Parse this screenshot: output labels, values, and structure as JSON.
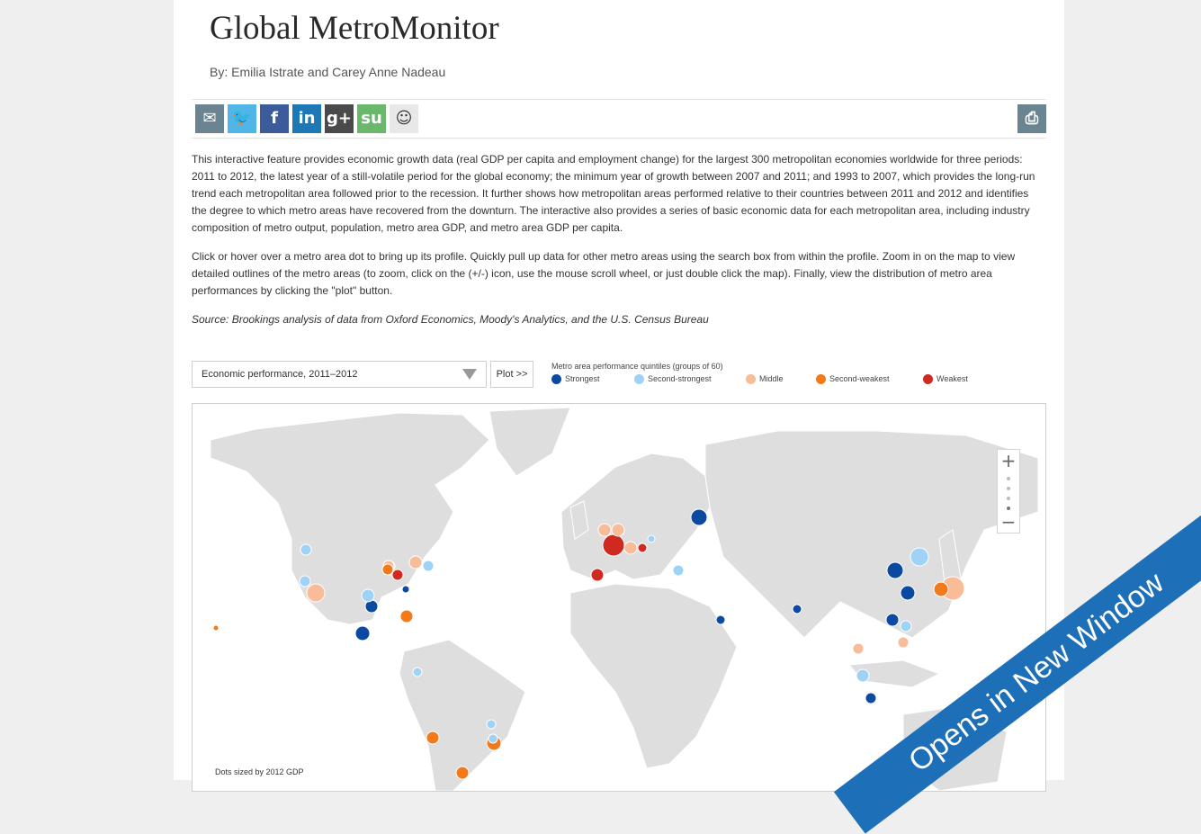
{
  "header": {
    "title": "Global MetroMonitor",
    "byline": "By: Emilia Istrate and Carey Anne Nadeau"
  },
  "share": {
    "items": [
      {
        "name": "email-share-button",
        "icon": "envelope-icon",
        "glyph": "✉",
        "color": "#6a8591"
      },
      {
        "name": "twitter-share-button",
        "icon": "twitter-bird-icon",
        "glyph": "🐦",
        "color": "#50b6e8"
      },
      {
        "name": "facebook-share-button",
        "icon": "facebook-f-icon",
        "glyph": "f",
        "color": "#3b5b9a"
      },
      {
        "name": "linkedin-share-button",
        "icon": "linkedin-in-icon",
        "glyph": "in",
        "color": "#1e78b6"
      },
      {
        "name": "googleplus-share-button",
        "icon": "google-plus-icon",
        "glyph": "g+",
        "color": "#4a4a4a"
      },
      {
        "name": "stumbleupon-share-button",
        "icon": "stumbleupon-icon",
        "glyph": "su",
        "color": "#69b86b"
      },
      {
        "name": "reddit-share-button",
        "icon": "reddit-alien-icon",
        "glyph": "☺",
        "color": "#e8e8e8"
      }
    ],
    "print": {
      "name": "print-button",
      "icon": "printer-icon",
      "glyph": "⎙",
      "color": "#6a8591"
    }
  },
  "intro": {
    "p1": "This interactive feature provides economic growth data (real GDP per capita and employment change) for the largest 300 metropolitan economies worldwide for three periods: 2011 to 2012, the latest year of a still-volatile period for the global economy; the minimum year of growth between 2007 and 2011; and 1993 to 2007, which provides the long-run trend each metropolitan area followed prior to the recession. It further shows how metropolitan areas performed relative to their countries between 2011 and 2012 and identifies the degree to which metro areas have recovered from the downturn. The interactive also provides a series of basic economic data for each metropolitan area, including industry composition of metro output, population, metro area GDP, and metro area GDP per capita.",
    "p2": "Click or hover over a metro area dot to bring up its profile. Quickly pull up data for other metro areas using the search box from within the profile. Zoom in on the map to view detailed outlines of the metro areas (to zoom, click on the (+/-) icon, use the mouse scroll wheel, or just double click the map). Finally, view the distribution of metro area performances by clicking the \"plot\" button.",
    "source": "Source: Brookings analysis of data from Oxford Economics, Moody's Analytics, and the U.S. Census Bureau"
  },
  "controls": {
    "select_value": "Economic performance, 2011–2012",
    "plot_label": "Plot >>"
  },
  "legend": {
    "title": "Metro area performance quintiles (groups of 60)",
    "items": [
      {
        "label": "Strongest",
        "color": "#0b4aa0"
      },
      {
        "label": "Second-strongest",
        "color": "#9fd2f7"
      },
      {
        "label": "Middle",
        "color": "#f8bd98"
      },
      {
        "label": "Second-weakest",
        "color": "#f27a1a"
      },
      {
        "label": "Weakest",
        "color": "#d02a20"
      }
    ]
  },
  "map": {
    "zoom_in": "+",
    "zoom_out": "−",
    "dots_note": "Dots sized by 2012 GDP"
  },
  "ribbon": {
    "label": "Opens in New Window"
  }
}
